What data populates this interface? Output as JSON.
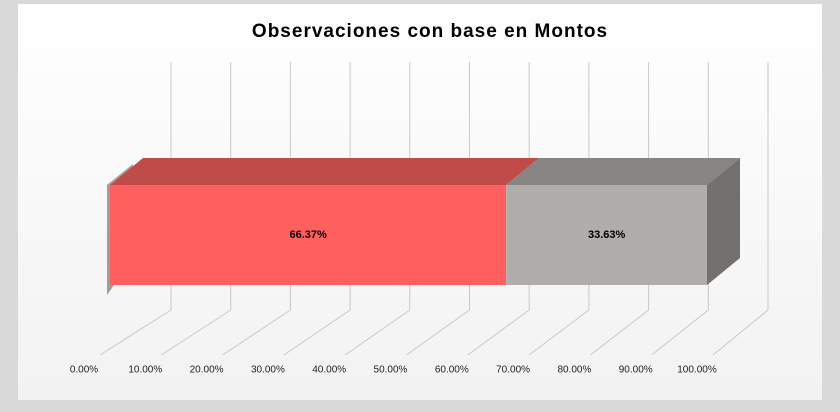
{
  "chart_data": {
    "type": "bar3d_stacked_horizontal",
    "title": "Observaciones con base en Montos",
    "series": [
      {
        "color": "#ff5f5f",
        "top_color": "#c04c4a",
        "side_color": "#9e3e3c",
        "values": [
          66.37
        ],
        "value_labels": [
          "66.37%"
        ]
      },
      {
        "color": "#b0adab",
        "top_color": "#888483",
        "side_color": "#737170",
        "values": [
          33.63
        ],
        "value_labels": [
          "33.63%"
        ]
      }
    ],
    "xlim": [
      0,
      100
    ],
    "xticks": [
      {
        "value": 0,
        "label": "0.00%"
      },
      {
        "value": 10,
        "label": "10.00%"
      },
      {
        "value": 20,
        "label": "20.00%"
      },
      {
        "value": 30,
        "label": "30.00%"
      },
      {
        "value": 40,
        "label": "40.00%"
      },
      {
        "value": 50,
        "label": "50.00%"
      },
      {
        "value": 60,
        "label": "60.00%"
      },
      {
        "value": 70,
        "label": "70.00%"
      },
      {
        "value": 80,
        "label": "80.00%"
      },
      {
        "value": 90,
        "label": "90.00%"
      },
      {
        "value": 100,
        "label": "100.00%"
      }
    ],
    "grid": true
  }
}
